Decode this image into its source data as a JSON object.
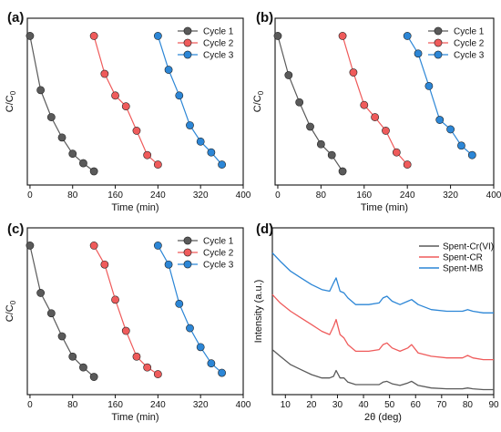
{
  "colors": {
    "cycle1": "#5a5a5a",
    "cycle2": "#ef5b5b",
    "cycle3": "#2c86d6"
  },
  "chart_data": [
    {
      "panel": "(a)",
      "type": "line",
      "xlabel": "Time (min)",
      "ylabel_main": "C/C",
      "ylabel_sub": "0",
      "xlim": [
        -5,
        400
      ],
      "ylim": [
        0,
        1.05
      ],
      "xticks": [
        0,
        80,
        160,
        240,
        320,
        400
      ],
      "legend": "top-right",
      "series": [
        {
          "name": "Cycle 1",
          "x": [
            0,
            20,
            40,
            60,
            80,
            100,
            120
          ],
          "y": [
            1.0,
            0.6,
            0.4,
            0.25,
            0.13,
            0.06,
            0.0
          ]
        },
        {
          "name": "Cycle 2",
          "x": [
            120,
            140,
            160,
            180,
            200,
            220,
            240
          ],
          "y": [
            1.0,
            0.72,
            0.56,
            0.48,
            0.3,
            0.12,
            0.05
          ]
        },
        {
          "name": "Cycle 3",
          "x": [
            240,
            260,
            280,
            300,
            320,
            340,
            360
          ],
          "y": [
            1.0,
            0.75,
            0.56,
            0.34,
            0.22,
            0.14,
            0.05
          ]
        }
      ]
    },
    {
      "panel": "(b)",
      "type": "line",
      "xlabel": "Time (min)",
      "ylabel_main": "C/C",
      "ylabel_sub": "0",
      "xlim": [
        -5,
        400
      ],
      "ylim": [
        0,
        1.05
      ],
      "xticks": [
        0,
        80,
        160,
        240,
        320,
        400
      ],
      "legend": "top-right",
      "series": [
        {
          "name": "Cycle 1",
          "x": [
            0,
            20,
            40,
            60,
            80,
            100,
            120
          ],
          "y": [
            1.0,
            0.71,
            0.51,
            0.33,
            0.2,
            0.12,
            0.0
          ]
        },
        {
          "name": "Cycle 2",
          "x": [
            120,
            140,
            160,
            180,
            200,
            220,
            240
          ],
          "y": [
            1.0,
            0.73,
            0.49,
            0.4,
            0.3,
            0.14,
            0.05
          ]
        },
        {
          "name": "Cycle 3",
          "x": [
            240,
            260,
            280,
            300,
            320,
            340,
            360
          ],
          "y": [
            1.0,
            0.87,
            0.63,
            0.38,
            0.31,
            0.19,
            0.12
          ]
        }
      ]
    },
    {
      "panel": "(c)",
      "type": "line",
      "xlabel": "Time (min)",
      "ylabel_main": "C/C",
      "ylabel_sub": "0",
      "xlim": [
        -5,
        400
      ],
      "ylim": [
        0,
        1.05
      ],
      "xticks": [
        0,
        80,
        160,
        240,
        320,
        400
      ],
      "legend": "top-right",
      "series": [
        {
          "name": "Cycle 1",
          "x": [
            0,
            20,
            40,
            60,
            80,
            100,
            120
          ],
          "y": [
            1.0,
            0.65,
            0.5,
            0.33,
            0.18,
            0.1,
            0.03
          ]
        },
        {
          "name": "Cycle 2",
          "x": [
            120,
            140,
            160,
            180,
            200,
            220,
            240
          ],
          "y": [
            1.0,
            0.86,
            0.6,
            0.37,
            0.18,
            0.1,
            0.05
          ]
        },
        {
          "name": "Cycle 3",
          "x": [
            240,
            260,
            280,
            300,
            320,
            340,
            360
          ],
          "y": [
            1.0,
            0.86,
            0.57,
            0.39,
            0.25,
            0.13,
            0.06
          ]
        }
      ]
    },
    {
      "panel": "(d)",
      "type": "line",
      "xlabel": "2θ (deg)",
      "ylabel": "Intensity (a.u.)",
      "xlim": [
        5,
        90
      ],
      "ylim": [
        0,
        1
      ],
      "xticks": [
        10,
        20,
        30,
        40,
        50,
        60,
        70,
        80,
        90
      ],
      "legend": "top-right",
      "series": [
        {
          "name": "Spent-Cr(VI)",
          "x": [
            5,
            8,
            12,
            16,
            20,
            24,
            27,
            28.5,
            29.5,
            31,
            32.5,
            34,
            37,
            42,
            46,
            47.5,
            49,
            51,
            54,
            57,
            58.5,
            61,
            66,
            72,
            78,
            80,
            82,
            86,
            90
          ],
          "y": [
            0.27,
            0.23,
            0.18,
            0.15,
            0.12,
            0.1,
            0.1,
            0.11,
            0.145,
            0.1,
            0.1,
            0.075,
            0.06,
            0.06,
            0.06,
            0.075,
            0.08,
            0.065,
            0.055,
            0.07,
            0.08,
            0.055,
            0.04,
            0.035,
            0.035,
            0.04,
            0.035,
            0.03,
            0.03
          ]
        },
        {
          "name": "Spent-CR",
          "x": [
            5,
            8,
            12,
            16,
            20,
            24,
            27,
            28.5,
            29.5,
            31,
            32.5,
            34,
            37,
            42,
            46,
            47.5,
            49,
            51,
            54,
            57,
            58.5,
            61,
            66,
            72,
            78,
            80,
            82,
            86,
            90
          ],
          "y": [
            0.6,
            0.55,
            0.5,
            0.46,
            0.42,
            0.38,
            0.36,
            0.41,
            0.45,
            0.36,
            0.34,
            0.3,
            0.26,
            0.26,
            0.27,
            0.3,
            0.31,
            0.28,
            0.26,
            0.28,
            0.3,
            0.25,
            0.23,
            0.22,
            0.22,
            0.235,
            0.22,
            0.21,
            0.21
          ]
        },
        {
          "name": "Spent-MB",
          "x": [
            5,
            8,
            12,
            16,
            20,
            24,
            27,
            28.5,
            29.5,
            31,
            32.5,
            34,
            37,
            42,
            46,
            47.5,
            49,
            51,
            54,
            57,
            58.5,
            61,
            66,
            72,
            78,
            80,
            82,
            86,
            90
          ],
          "y": [
            0.85,
            0.8,
            0.74,
            0.7,
            0.66,
            0.63,
            0.62,
            0.67,
            0.7,
            0.62,
            0.61,
            0.58,
            0.54,
            0.54,
            0.55,
            0.58,
            0.59,
            0.56,
            0.54,
            0.56,
            0.57,
            0.54,
            0.51,
            0.5,
            0.5,
            0.51,
            0.5,
            0.49,
            0.49
          ]
        }
      ]
    }
  ]
}
